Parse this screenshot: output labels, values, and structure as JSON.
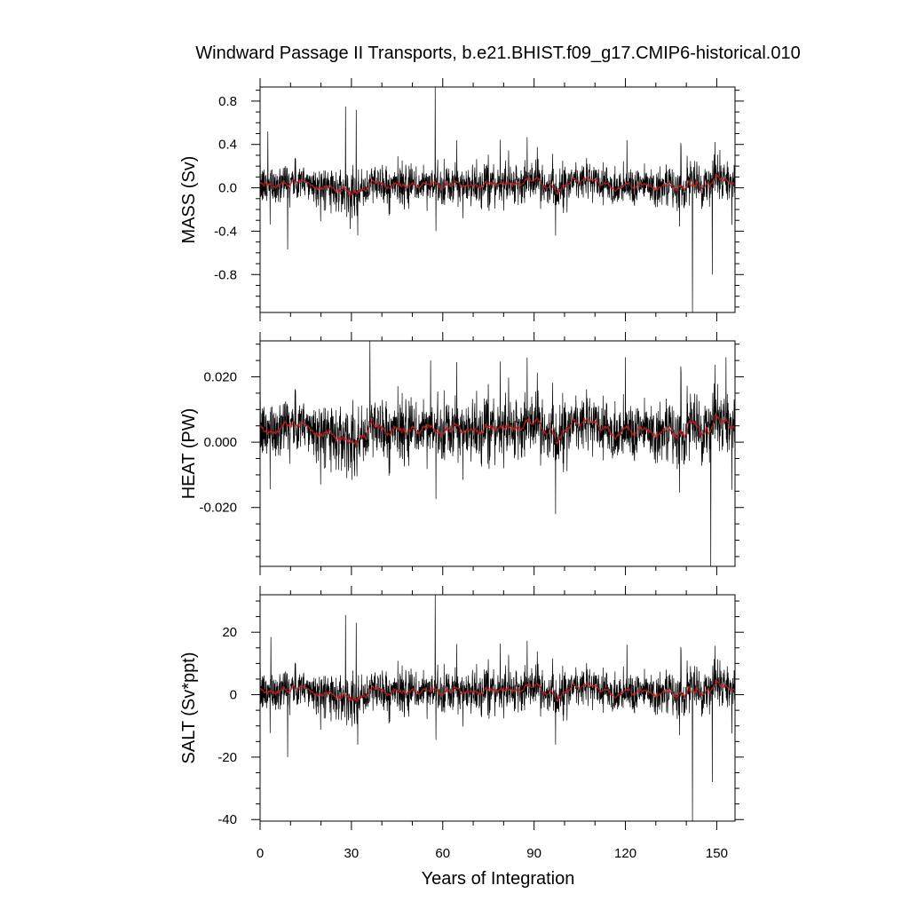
{
  "title": "Windward Passage II Transports, b.e21.BHIST.f09_g17.CMIP6-historical.010",
  "xlabel": "Years of Integration",
  "chart_data": [
    {
      "type": "line",
      "ylabel": "MASS (Sv)",
      "xlim": [
        0,
        156
      ],
      "ylim": [
        -1.15,
        0.93
      ],
      "x_ticks": [
        0,
        30,
        60,
        90,
        120,
        150
      ],
      "y_ticks": [
        0.8,
        0.4,
        0.0,
        -0.4,
        -0.8
      ],
      "y_tick_labels": [
        "0.8",
        "0.4",
        "0.0",
        "-0.4",
        "-0.8"
      ],
      "series_colors": [
        "#000000",
        "#d02020"
      ],
      "baseline": 0.03,
      "noise_std": 0.09,
      "spikes": [
        [
          2.5,
          0.52
        ],
        [
          9,
          -0.57
        ],
        [
          28,
          0.75
        ],
        [
          29.5,
          -0.38
        ],
        [
          31.5,
          0.72
        ],
        [
          32,
          -0.44
        ],
        [
          57.5,
          0.93
        ],
        [
          97,
          -0.44
        ],
        [
          120.5,
          0.44
        ],
        [
          142,
          -1.15
        ],
        [
          148.5,
          -0.8
        ],
        [
          151,
          0.35
        ]
      ]
    },
    {
      "type": "line",
      "ylabel": "HEAT (PW)",
      "xlim": [
        0,
        156
      ],
      "ylim": [
        -0.038,
        0.031
      ],
      "x_ticks": [
        0,
        30,
        60,
        90,
        120,
        150
      ],
      "y_ticks": [
        0.02,
        0.0,
        -0.02
      ],
      "y_tick_labels": [
        "0.020",
        "0.000",
        "-0.020"
      ],
      "series_colors": [
        "#000000",
        "#d02020"
      ],
      "baseline": 0.004,
      "noise_std": 0.0045,
      "spikes": [
        [
          36,
          0.031
        ],
        [
          56,
          0.025
        ],
        [
          97,
          -0.022
        ],
        [
          120,
          0.026
        ],
        [
          148,
          -0.038
        ],
        [
          153,
          0.026
        ]
      ]
    },
    {
      "type": "line",
      "ylabel": "SALT (Sv*ppt)",
      "xlim": [
        0,
        156
      ],
      "ylim": [
        -40.5,
        32
      ],
      "x_ticks": [
        0,
        30,
        60,
        90,
        120,
        150
      ],
      "y_ticks": [
        20,
        0,
        -20,
        -40
      ],
      "y_tick_labels": [
        "20",
        "0",
        "-20",
        "-40"
      ],
      "series_colors": [
        "#000000",
        "#d02020"
      ],
      "baseline": 1.2,
      "noise_std": 3.3,
      "spikes": [
        [
          3.5,
          18.5
        ],
        [
          9,
          -20
        ],
        [
          28,
          25.5
        ],
        [
          31.5,
          23
        ],
        [
          32,
          -16
        ],
        [
          57.5,
          32
        ],
        [
          97,
          -16
        ],
        [
          120.5,
          16
        ],
        [
          142,
          -40.5
        ],
        [
          148.5,
          -28
        ],
        [
          151,
          11
        ]
      ]
    }
  ]
}
